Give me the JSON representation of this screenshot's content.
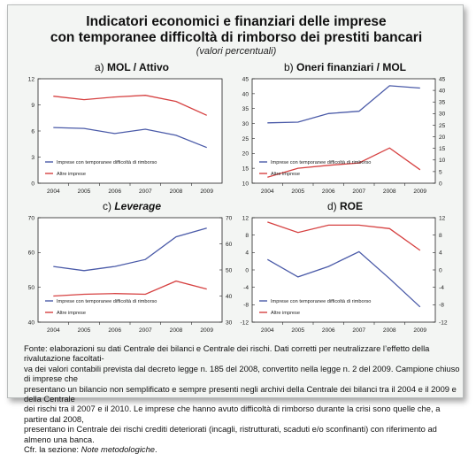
{
  "title_line1": "Indicatori economici e finanziari delle imprese",
  "title_line2": "con temporanee difficoltà di rimborso dei prestiti bancari",
  "subtitle": "(valori percentuali)",
  "colors": {
    "series_a": "#4a5aa8",
    "series_b": "#d64141",
    "axis": "#222222",
    "background": "#f3f5f3"
  },
  "chart_data": [
    {
      "id": "a",
      "type": "line",
      "letter": "a)",
      "title": "MOL / Attivo",
      "title_italic": false,
      "x": [
        "2004",
        "2005",
        "2006",
        "2007",
        "2008",
        "2009"
      ],
      "left_axis": {
        "ylim": [
          0,
          12
        ],
        "ticks": [
          "0",
          "3",
          "6",
          "9",
          "12"
        ]
      },
      "right_axis": null,
      "grid": false,
      "legend": "bottom-left",
      "series": [
        {
          "name": "Imprese con temporanee difficoltà di rimborso",
          "axis": "left",
          "values": [
            6.4,
            6.3,
            5.7,
            6.2,
            5.5,
            4.1
          ]
        },
        {
          "name": "Altre imprese",
          "axis": "left",
          "values": [
            10.0,
            9.6,
            9.9,
            10.1,
            9.4,
            7.8
          ]
        }
      ]
    },
    {
      "id": "b",
      "type": "line",
      "letter": "b)",
      "title": "Oneri finanziari / MOL",
      "title_italic": false,
      "x": [
        "2004",
        "2005",
        "2006",
        "2007",
        "2008",
        "2009"
      ],
      "left_axis": {
        "ylim": [
          10,
          45
        ],
        "ticks": [
          "10",
          "15",
          "20",
          "25",
          "30",
          "35",
          "40",
          "45"
        ]
      },
      "right_axis": {
        "ylim": [
          0,
          45
        ],
        "ticks": [
          "0",
          "5",
          "10",
          "15",
          "20",
          "25",
          "30",
          "35",
          "40",
          "45"
        ]
      },
      "grid": false,
      "legend": "bottom-left",
      "series": [
        {
          "name": "Imprese con temporanee difficoltà di rimborso",
          "axis": "right",
          "values": [
            26.0,
            26.3,
            30.0,
            31.0,
            42.0,
            41.0
          ]
        },
        {
          "name": "Altre imprese",
          "axis": "left",
          "values": [
            12.0,
            15.0,
            16.0,
            16.8,
            21.8,
            14.5
          ]
        }
      ]
    },
    {
      "id": "c",
      "type": "line",
      "letter": "c)",
      "title": "Leverage",
      "title_italic": true,
      "x": [
        "2004",
        "2005",
        "2006",
        "2007",
        "2008",
        "2009"
      ],
      "left_axis": {
        "ylim": [
          40,
          70
        ],
        "ticks": [
          "40",
          "50",
          "60",
          "70"
        ]
      },
      "right_axis": {
        "ylim": [
          30,
          70
        ],
        "ticks": [
          "30",
          "40",
          "50",
          "60",
          "70"
        ]
      },
      "grid": false,
      "legend": "bottom-left",
      "series": [
        {
          "name": "Imprese con temporanee difficoltà di rimborso",
          "axis": "left",
          "values": [
            56.0,
            54.8,
            56.0,
            58.0,
            64.5,
            67.0
          ]
        },
        {
          "name": "Altre imprese",
          "axis": "left",
          "values": [
            47.5,
            48.0,
            48.2,
            48.0,
            51.8,
            49.5
          ]
        }
      ]
    },
    {
      "id": "d",
      "type": "line",
      "letter": "d)",
      "title": "ROE",
      "title_italic": false,
      "x": [
        "2004",
        "2005",
        "2006",
        "2007",
        "2008",
        "2009"
      ],
      "left_axis": {
        "ylim": [
          -12,
          12
        ],
        "ticks": [
          "-12",
          "-8",
          "-4",
          "0",
          "4",
          "8",
          "12"
        ]
      },
      "right_axis": {
        "ylim": [
          -12,
          12
        ],
        "ticks": [
          "-12",
          "-8",
          "-4",
          "0",
          "4",
          "8",
          "12"
        ]
      },
      "grid": false,
      "legend": "bottom-left",
      "series": [
        {
          "name": "Imprese con temporanee difficoltà di rimborso",
          "axis": "left",
          "values": [
            2.4,
            -1.6,
            0.8,
            4.2,
            -2.0,
            -8.5
          ]
        },
        {
          "name": "Altre imprese",
          "axis": "left",
          "values": [
            11.0,
            8.6,
            10.3,
            10.3,
            9.5,
            4.5
          ]
        }
      ]
    }
  ],
  "footer": {
    "lines": [
      "Fonte: elaborazioni su dati Centrale dei bilanci e Centrale dei rischi. Dati corretti per neutralizzare l’effetto della rivalutazione facoltati-",
      "va dei valori contabili prevista dal decreto legge n. 185 del 2008, convertito nella legge n. 2 del 2009. Campione chiuso di imprese che",
      "presentano un bilancio non semplificato e sempre presenti negli archivi della Centrale dei bilanci tra il 2004 e il 2009 e della Centrale",
      "dei rischi tra il 2007 e il 2010. Le imprese che hanno avuto difficoltà di rimborso durante la crisi sono quelle che, a partire dal 2008,",
      "presentano in Centrale dei rischi crediti deteriorati (incagli, ristrutturati, scaduti e/o sconfinanti) con riferimento ad almeno una banca."
    ],
    "last_prefix": "Cfr. la sezione: ",
    "last_italic": "Note metodologiche",
    "last_suffix": "."
  }
}
